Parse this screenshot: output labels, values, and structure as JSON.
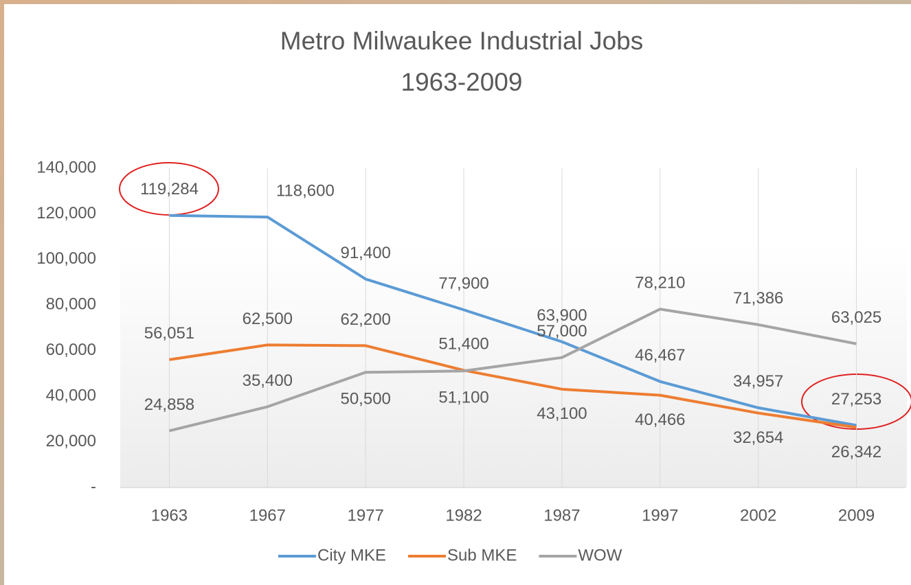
{
  "chart_data": {
    "type": "line",
    "title": "Metro Milwaukee Industrial Jobs",
    "subtitle": "1963-2009",
    "categories": [
      "1963",
      "1967",
      "1977",
      "1982",
      "1987",
      "1997",
      "2002",
      "2009"
    ],
    "series": [
      {
        "name": "City MKE",
        "color": "#5b9bd5",
        "values": [
          119284,
          118600,
          91400,
          77900,
          63900,
          46467,
          34957,
          27253
        ],
        "value_labels": [
          "119,284",
          "118,600",
          "91,400",
          "77,900",
          "63,900",
          "46,467",
          "34,957",
          "27,253"
        ]
      },
      {
        "name": "Sub MKE",
        "color": "#ed7d31",
        "values": [
          56051,
          62500,
          62200,
          51400,
          43100,
          40466,
          32654,
          26342
        ],
        "value_labels": [
          "56,051",
          "62,500",
          "62,200",
          "51,400",
          "43,100",
          "40,466",
          "32,654",
          "26,342"
        ]
      },
      {
        "name": "WOW",
        "color": "#a5a5a5",
        "values": [
          24858,
          35400,
          50500,
          51100,
          57000,
          78210,
          71386,
          63025
        ],
        "value_labels": [
          "24,858",
          "35,400",
          "50,500",
          "51,100",
          "57,000",
          "78,210",
          "71,386",
          "63,025"
        ]
      }
    ],
    "ylim": [
      0,
      140000
    ],
    "yticks": [
      {
        "value": 0,
        "label": "-"
      },
      {
        "value": 20000,
        "label": "20,000"
      },
      {
        "value": 40000,
        "label": "40,000"
      },
      {
        "value": 60000,
        "label": "60,000"
      },
      {
        "value": 80000,
        "label": "80,000"
      },
      {
        "value": 100000,
        "label": "100,000"
      },
      {
        "value": 120000,
        "label": "120,000"
      },
      {
        "value": 140000,
        "label": "140,000"
      }
    ],
    "grid": true,
    "legend": "bottom"
  }
}
